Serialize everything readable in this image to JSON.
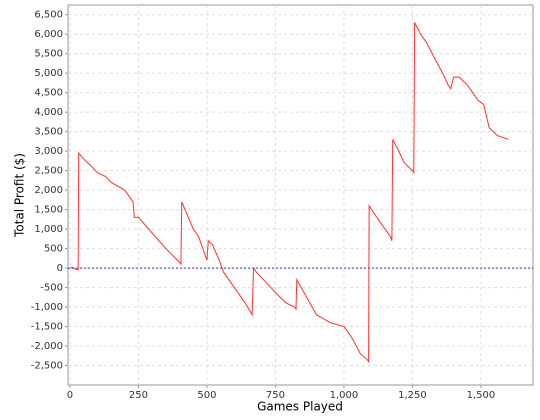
{
  "chart_data": {
    "type": "line",
    "x_label": "Games Played",
    "y_label": "Total Profit ($)",
    "color": "#ff3333",
    "grid": true,
    "xlim": [
      -7,
      1690
    ],
    "ylim": [
      -3000,
      6750
    ],
    "xticks": [
      0,
      250,
      500,
      750,
      {
        "value": 1000,
        "label": "1,000"
      },
      {
        "value": 1250,
        "label": "1,250"
      },
      {
        "value": 1500,
        "label": "1,500"
      }
    ],
    "yticks": [
      {
        "value": -2500,
        "label": "-2,500"
      },
      {
        "value": -2000,
        "label": "-2,000"
      },
      {
        "value": -1500,
        "label": "-1,500"
      },
      {
        "value": -1000,
        "label": "-1,000"
      },
      -500,
      0,
      500,
      {
        "value": 1000,
        "label": "1,000"
      },
      {
        "value": 1500,
        "label": "1,500"
      },
      {
        "value": 2000,
        "label": "2,000"
      },
      {
        "value": 2500,
        "label": "2,500"
      },
      {
        "value": 3000,
        "label": "3,000"
      },
      {
        "value": 3500,
        "label": "3,500"
      },
      {
        "value": 4000,
        "label": "4,000"
      },
      {
        "value": 4500,
        "label": "4,500"
      },
      {
        "value": 5000,
        "label": "5,000"
      },
      {
        "value": 5500,
        "label": "5,500"
      },
      {
        "value": 6000,
        "label": "6,000"
      },
      {
        "value": 6500,
        "label": "6,500"
      }
    ],
    "x": [
      0,
      10,
      20,
      30,
      32,
      50,
      80,
      100,
      130,
      150,
      200,
      230,
      235,
      250,
      300,
      350,
      400,
      405,
      408,
      420,
      450,
      470,
      495,
      500,
      505,
      520,
      545,
      560,
      600,
      640,
      665,
      670,
      680,
      720,
      760,
      790,
      820,
      825,
      828,
      860,
      900,
      950,
      1000,
      1030,
      1060,
      1085,
      1090,
      1092,
      1110,
      1140,
      1170,
      1175,
      1178,
      1200,
      1220,
      1250,
      1255,
      1258,
      1280,
      1300,
      1330,
      1360,
      1380,
      1390,
      1400,
      1420,
      1450,
      1470,
      1490,
      1510,
      1530,
      1560,
      1600
    ],
    "values": [
      0,
      20,
      -30,
      -50,
      2950,
      2800,
      2600,
      2450,
      2350,
      2200,
      2000,
      1700,
      1300,
      1300,
      900,
      500,
      150,
      100,
      1700,
      1500,
      1000,
      800,
      300,
      200,
      700,
      600,
      200,
      -100,
      -500,
      -900,
      -1200,
      0,
      -100,
      -400,
      -700,
      -900,
      -1000,
      -1050,
      -300,
      -700,
      -1200,
      -1400,
      -1500,
      -1800,
      -2200,
      -2350,
      -2400,
      1600,
      1400,
      1100,
      800,
      700,
      3300,
      3000,
      2700,
      2500,
      2450,
      6300,
      6000,
      5800,
      5400,
      5000,
      4700,
      4600,
      4900,
      4900,
      4700,
      4500,
      4300,
      4200,
      3600,
      3400,
      3300
    ]
  }
}
